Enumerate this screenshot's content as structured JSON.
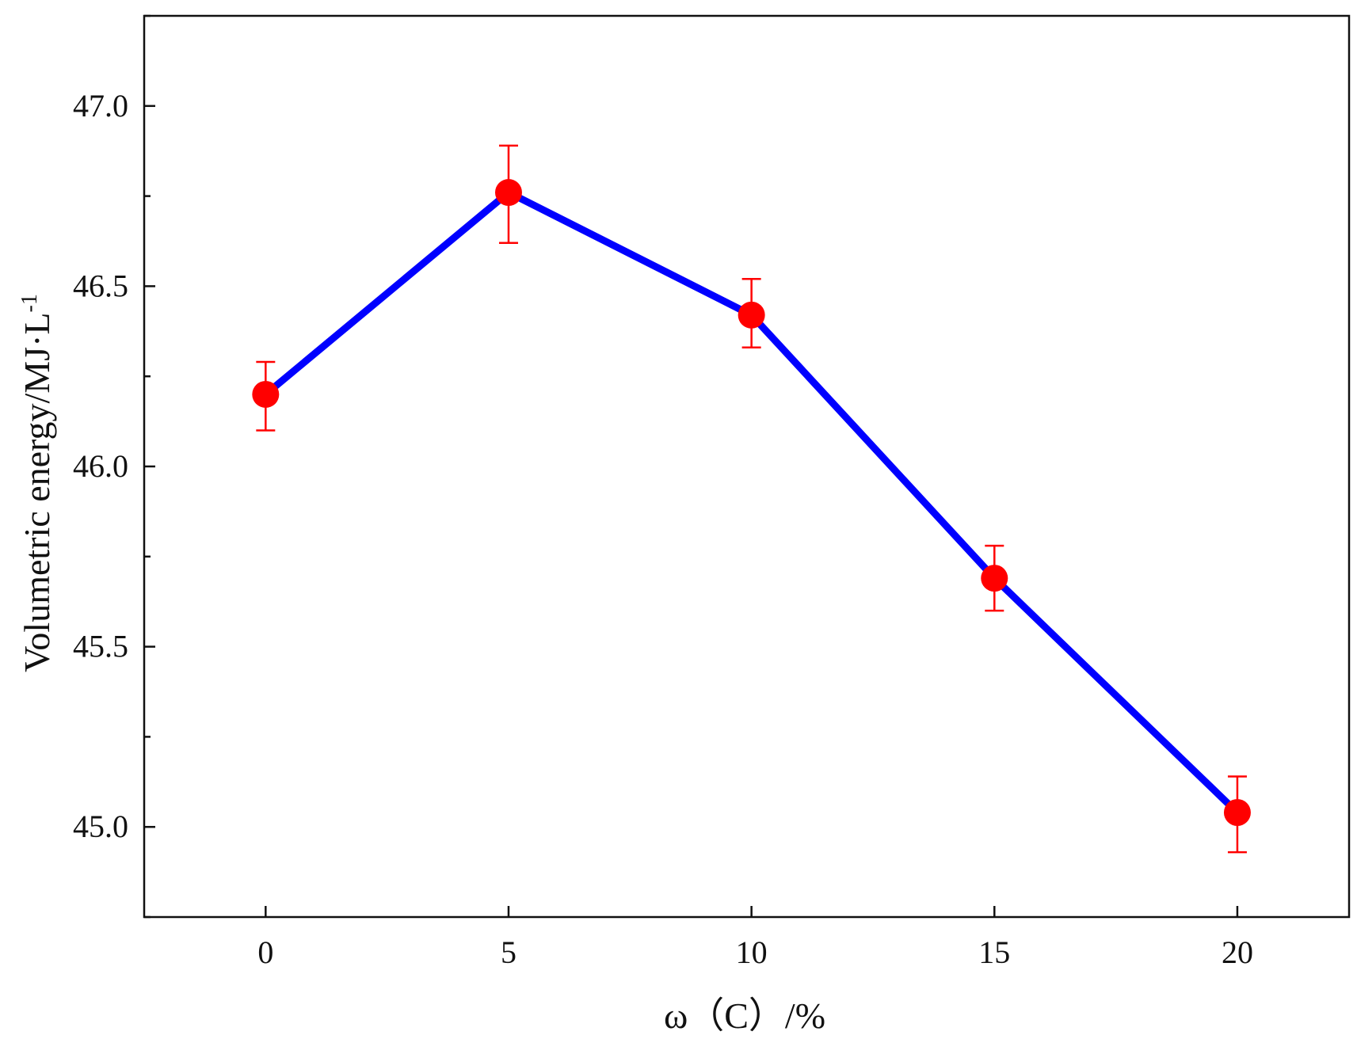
{
  "chart_data": {
    "type": "line",
    "xlabel": "ω（C）/%",
    "ylabel": "Volumetric energy/MJ·L",
    "ylabel_sup": "-1",
    "xlim": [
      -2.5,
      22.3
    ],
    "ylim": [
      44.75,
      47.25
    ],
    "x_ticks": [
      0,
      5,
      10,
      15,
      20
    ],
    "x_tick_labels": [
      "0",
      "5",
      "10",
      "15",
      "20"
    ],
    "y_ticks": [
      45.0,
      45.5,
      46.0,
      46.5,
      47.0
    ],
    "y_tick_labels": [
      "45.0",
      "45.5",
      "46.0",
      "46.5",
      "47.0"
    ],
    "y_minor_ticks": [
      44.75,
      45.25,
      45.75,
      46.25,
      46.75,
      47.25
    ],
    "grid": false,
    "legend": "none",
    "series": [
      {
        "x": [
          0,
          5,
          10,
          15,
          20
        ],
        "y": [
          46.2,
          46.76,
          46.42,
          45.69,
          45.04
        ],
        "error": [
          [
            46.1,
            46.29
          ],
          [
            46.62,
            46.89
          ],
          [
            46.33,
            46.52
          ],
          [
            45.6,
            45.78
          ],
          [
            44.93,
            45.14
          ]
        ],
        "line_color": "#0000ff",
        "marker_color": "#ff0000",
        "error_color": "#ff0000"
      }
    ]
  }
}
